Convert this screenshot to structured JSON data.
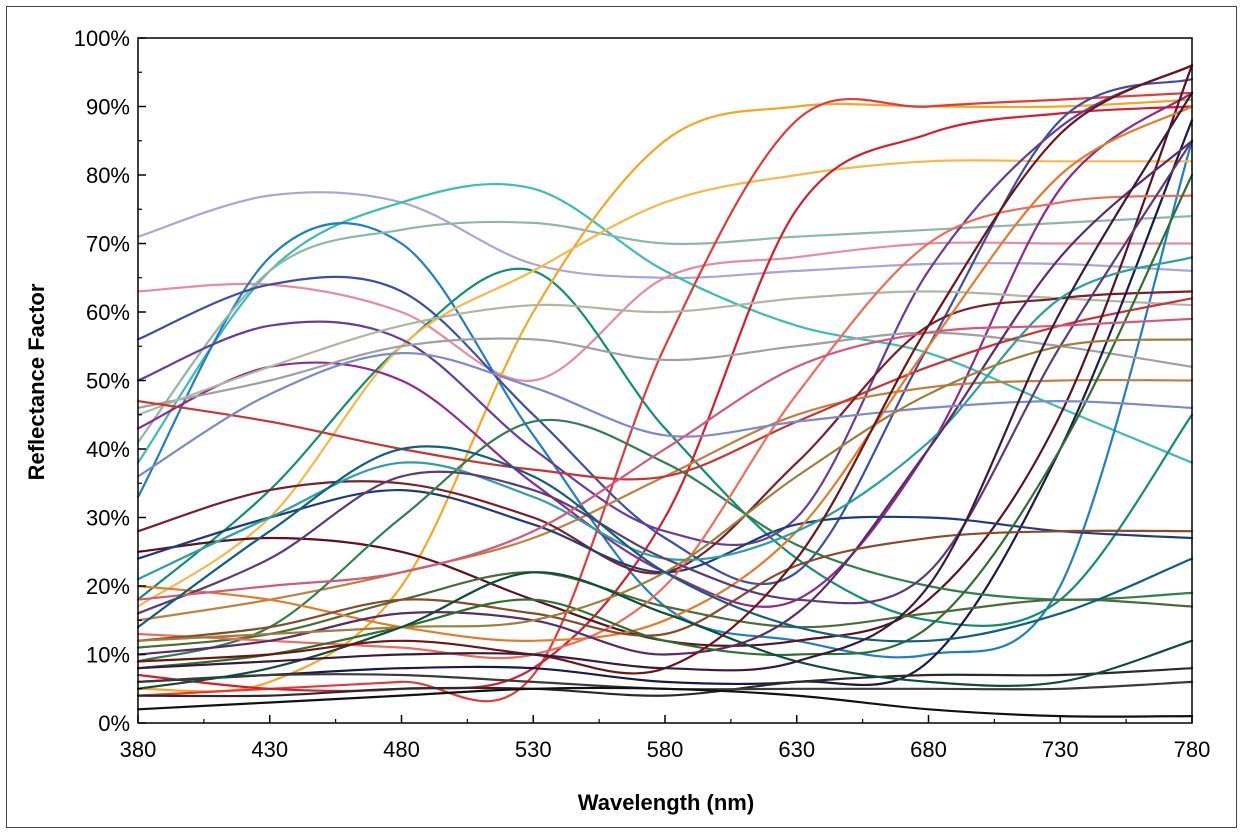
{
  "chart_data": {
    "type": "line",
    "title": "",
    "xlabel": "Wavelength (nm)",
    "ylabel": "Reflectance Factor",
    "xlim": [
      380,
      780
    ],
    "ylim": [
      0,
      100
    ],
    "x_ticks": [
      380,
      430,
      480,
      530,
      580,
      630,
      680,
      730,
      780
    ],
    "x_tick_labels": [
      "380",
      "430",
      "480",
      "530",
      "580",
      "630",
      "680",
      "730",
      "780"
    ],
    "y_ticks": [
      0,
      10,
      20,
      30,
      40,
      50,
      60,
      70,
      80,
      90,
      100
    ],
    "y_tick_labels": [
      "0%",
      "10%",
      "20%",
      "30%",
      "40%",
      "50%",
      "60%",
      "70%",
      "80%",
      "90%",
      "100%"
    ],
    "grid": false,
    "legend": "none",
    "x": [
      380,
      430,
      480,
      530,
      580,
      630,
      680,
      730,
      780
    ],
    "series": [
      {
        "color": "#a9a6d6",
        "values": [
          71,
          77,
          76,
          67,
          65,
          66,
          67,
          67,
          66
        ]
      },
      {
        "color": "#3bbcb4",
        "values": [
          38,
          66,
          76,
          78,
          66,
          58,
          54,
          46,
          38
        ]
      },
      {
        "color": "#e88aa0",
        "values": [
          63,
          64,
          60,
          50,
          65,
          68,
          70,
          70,
          70
        ]
      },
      {
        "color": "#1f7fc4",
        "values": [
          33,
          68,
          70,
          42,
          17,
          12,
          10,
          20,
          85
        ]
      },
      {
        "color": "#8fb7a8",
        "values": [
          41,
          66,
          72,
          73,
          70,
          71,
          72,
          73,
          74
        ]
      },
      {
        "color": "#0f8f72",
        "values": [
          18,
          34,
          55,
          66,
          43,
          24,
          15,
          18,
          45
        ]
      },
      {
        "color": "#f5a623",
        "values": [
          5,
          6,
          20,
          60,
          85,
          90,
          90,
          90,
          91
        ]
      },
      {
        "color": "#f7b84a",
        "values": [
          17,
          30,
          55,
          66,
          76,
          80,
          82,
          82,
          82
        ]
      },
      {
        "color": "#e23a3a",
        "values": [
          4,
          5,
          6,
          7,
          55,
          88,
          90,
          91,
          92
        ]
      },
      {
        "color": "#d81c2c",
        "values": [
          7,
          5,
          5,
          8,
          30,
          75,
          86,
          89,
          90
        ]
      },
      {
        "color": "#3c4fa6",
        "values": [
          56,
          64,
          63,
          45,
          27,
          22,
          55,
          88,
          94
        ]
      },
      {
        "color": "#6a3c9a",
        "values": [
          50,
          58,
          56,
          40,
          28,
          30,
          66,
          87,
          96
        ]
      },
      {
        "color": "#8e2a8e",
        "values": [
          43,
          52,
          50,
          35,
          22,
          18,
          40,
          78,
          92
        ]
      },
      {
        "color": "#9fa0a0",
        "values": [
          46,
          50,
          55,
          56,
          53,
          55,
          57,
          55,
          52
        ]
      },
      {
        "color": "#b0b7a0",
        "values": [
          45,
          52,
          58,
          61,
          60,
          62,
          63,
          62,
          61
        ]
      },
      {
        "color": "#c08040",
        "values": [
          15,
          18,
          22,
          27,
          36,
          45,
          49,
          50,
          50
        ]
      },
      {
        "color": "#cc3333",
        "values": [
          47,
          44,
          40,
          37,
          36,
          44,
          52,
          58,
          62
        ]
      },
      {
        "color": "#7a1f2b",
        "values": [
          28,
          34,
          35,
          30,
          22,
          38,
          58,
          62,
          63
        ]
      },
      {
        "color": "#5c1020",
        "values": [
          25,
          27,
          25,
          18,
          12,
          12,
          18,
          45,
          96
        ]
      },
      {
        "color": "#1a1a4a",
        "values": [
          6,
          7,
          8,
          8,
          6,
          6,
          9,
          40,
          88
        ]
      },
      {
        "color": "#1e3d7a",
        "values": [
          24,
          30,
          34,
          29,
          22,
          29,
          30,
          28,
          27
        ]
      },
      {
        "color": "#2f7f4f",
        "values": [
          9,
          14,
          30,
          44,
          38,
          26,
          20,
          18,
          19
        ]
      },
      {
        "color": "#4a6b3a",
        "values": [
          11,
          13,
          18,
          22,
          17,
          14,
          16,
          18,
          17
        ]
      },
      {
        "color": "#e57b2a",
        "values": [
          20,
          18,
          14,
          12,
          15,
          28,
          55,
          80,
          90
        ]
      },
      {
        "color": "#ef6c5a",
        "values": [
          13,
          12,
          11,
          10,
          20,
          48,
          70,
          76,
          77
        ]
      },
      {
        "color": "#2aa0a0",
        "values": [
          21,
          30,
          38,
          33,
          24,
          28,
          41,
          62,
          68
        ]
      },
      {
        "color": "#2b2b2b",
        "values": [
          4,
          4,
          5,
          5,
          4,
          6,
          7,
          7,
          8
        ]
      },
      {
        "color": "#3a3a3a",
        "values": [
          6,
          7,
          7,
          6,
          5,
          5,
          5,
          5,
          6
        ]
      },
      {
        "color": "#111111",
        "values": [
          2,
          3,
          4,
          5,
          5,
          4,
          2,
          1,
          1
        ]
      },
      {
        "color": "#5a2a6a",
        "values": [
          10,
          12,
          16,
          15,
          10,
          16,
          40,
          68,
          85
        ]
      },
      {
        "color": "#8a4a2a",
        "values": [
          12,
          14,
          18,
          16,
          13,
          23,
          27,
          28,
          28
        ]
      },
      {
        "color": "#2e6e2e",
        "values": [
          8,
          10,
          14,
          18,
          12,
          10,
          14,
          40,
          80
        ]
      },
      {
        "color": "#7c8ac8",
        "values": [
          36,
          48,
          54,
          49,
          42,
          44,
          46,
          47,
          46
        ]
      },
      {
        "color": "#5e3a78",
        "values": [
          16,
          24,
          36,
          34,
          24,
          18,
          22,
          55,
          85
        ]
      },
      {
        "color": "#d4587a",
        "values": [
          18,
          20,
          22,
          28,
          40,
          52,
          57,
          58,
          59
        ]
      },
      {
        "color": "#9b7f3a",
        "values": [
          12,
          13,
          14,
          15,
          22,
          36,
          48,
          55,
          56
        ]
      },
      {
        "color": "#0e4d3a",
        "values": [
          5,
          8,
          14,
          22,
          16,
          9,
          6,
          6,
          12
        ]
      },
      {
        "color": "#0f5f7f",
        "values": [
          14,
          28,
          40,
          36,
          22,
          14,
          12,
          16,
          24
        ]
      },
      {
        "color": "#6f1414",
        "values": [
          9,
          10,
          12,
          10,
          8,
          24,
          58,
          86,
          96
        ]
      },
      {
        "color": "#3a1a3a",
        "values": [
          8,
          9,
          10,
          10,
          8,
          9,
          20,
          60,
          92
        ]
      }
    ]
  }
}
